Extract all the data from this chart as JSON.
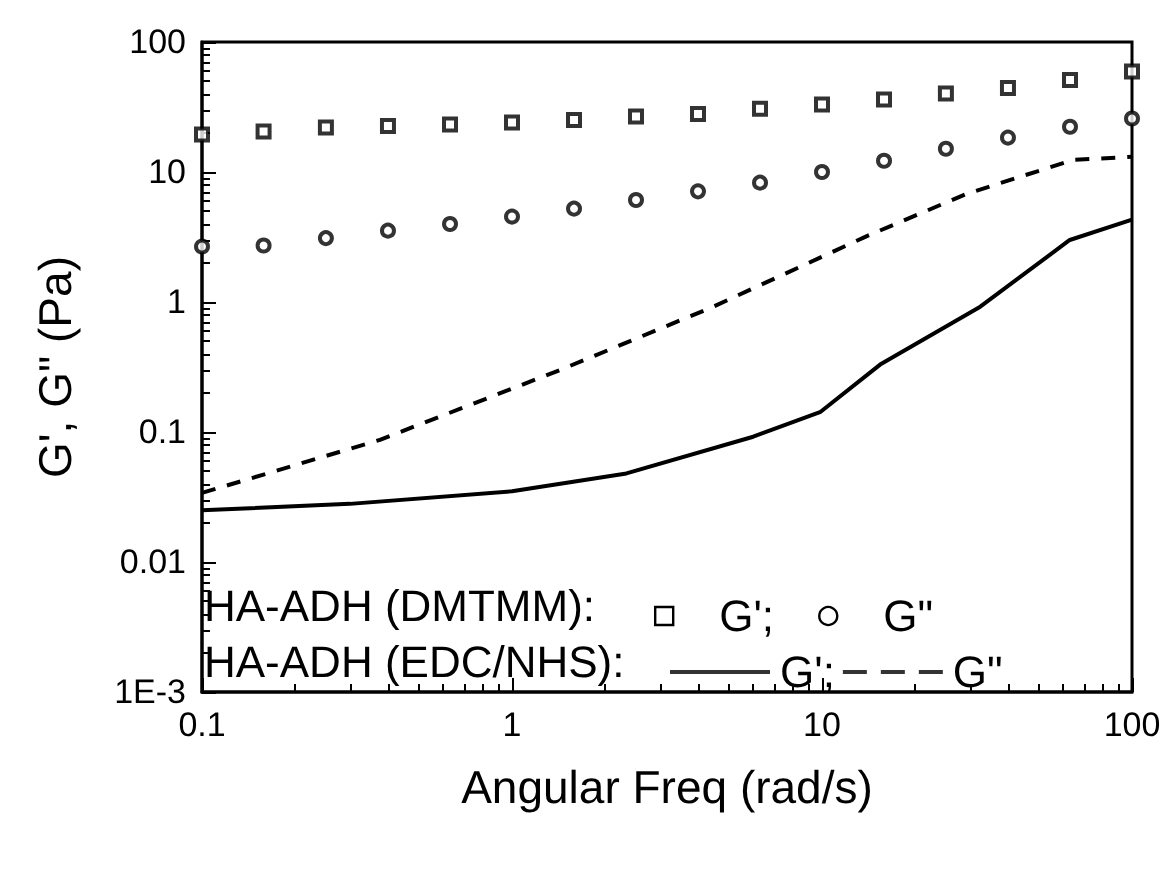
{
  "chart_data": {
    "type": "scatter",
    "xlabel": "Angular Freq (rad/s)",
    "ylabel": "G', G\" (Pa)",
    "log": "xy",
    "xlim": [
      0.1,
      100
    ],
    "xticks": [
      0.1,
      1,
      10,
      100
    ],
    "ylim": [
      0.001,
      100
    ],
    "yticks": [
      {
        "value": 0.001,
        "label": "1E-3"
      },
      0.01,
      0.1,
      1,
      10,
      100
    ],
    "legend": "bottom",
    "annotations": [
      "HA-ADH (DMTMM):",
      "HA-ADH (EDC/NHS):"
    ],
    "series": [
      {
        "name": "G';",
        "marker": "square",
        "color": "#000000",
        "x": [
          0.1,
          0.158,
          0.251,
          0.398,
          0.631,
          1,
          1.585,
          2.512,
          3.981,
          6.31,
          10,
          15.85,
          25.1,
          39.8,
          63.1,
          100
        ],
        "values": [
          19.4,
          20.5,
          22,
          22.6,
          23.2,
          24,
          25.1,
          26.7,
          27.9,
          30.7,
          33,
          36.1,
          40.2,
          44.3,
          51,
          59.4
        ]
      },
      {
        "name": "G\"",
        "marker": "circle",
        "color": "#000000",
        "x": [
          0.1,
          0.158,
          0.251,
          0.398,
          0.631,
          1,
          1.585,
          2.512,
          3.981,
          6.31,
          10,
          15.85,
          25.1,
          39.8,
          63.1,
          100
        ],
        "values": [
          2.67,
          2.72,
          3.1,
          3.54,
          3.98,
          4.54,
          5.23,
          6.09,
          7.1,
          8.28,
          10,
          12.2,
          15.1,
          18.4,
          22.3,
          25.8
        ]
      },
      {
        "name": "G';",
        "type": "line",
        "marker": "none",
        "line_style": "solid",
        "color": "#000000",
        "x": [
          0.1,
          0.3,
          1,
          2.34,
          6,
          9.9,
          15.4,
          32.4,
          63,
          100
        ],
        "values": [
          0.025,
          0.028,
          0.035,
          0.048,
          0.092,
          0.143,
          0.33,
          0.92,
          3.0,
          4.3
        ]
      },
      {
        "name": "G\"",
        "type": "line",
        "marker": "none",
        "line_style": "dashed",
        "color": "#000000",
        "x": [
          0.1,
          0.375,
          1.43,
          4.46,
          13.9,
          29.3,
          64.7,
          100
        ],
        "values": [
          0.034,
          0.087,
          0.3,
          0.92,
          3.2,
          6.8,
          12.4,
          13.1
        ]
      }
    ]
  }
}
